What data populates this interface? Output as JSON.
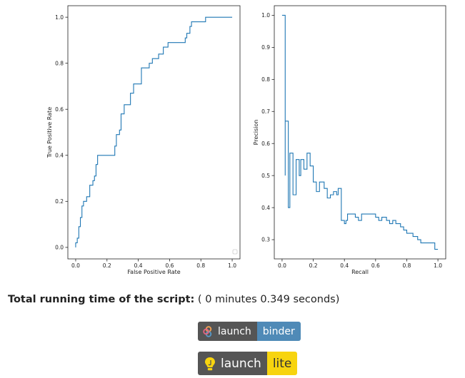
{
  "chart_data": [
    {
      "type": "line",
      "title": "",
      "xlabel": "False Positive Rate",
      "ylabel": "True Positive Rate",
      "xlim": [
        -0.05,
        1.05
      ],
      "ylim": [
        -0.05,
        1.05
      ],
      "xticks": [
        "0.0",
        "0.2",
        "0.4",
        "0.6",
        "0.8",
        "1.0"
      ],
      "yticks": [
        "0.0",
        "0.2",
        "0.4",
        "0.6",
        "0.8",
        "1.0"
      ],
      "legend": "bottom-right (empty)",
      "color": "#1f77b4",
      "points": [
        [
          0.0,
          0.0
        ],
        [
          0.0,
          0.02
        ],
        [
          0.01,
          0.02
        ],
        [
          0.01,
          0.04
        ],
        [
          0.02,
          0.04
        ],
        [
          0.02,
          0.09
        ],
        [
          0.03,
          0.09
        ],
        [
          0.03,
          0.13
        ],
        [
          0.04,
          0.13
        ],
        [
          0.04,
          0.18
        ],
        [
          0.05,
          0.18
        ],
        [
          0.05,
          0.2
        ],
        [
          0.07,
          0.2
        ],
        [
          0.07,
          0.22
        ],
        [
          0.09,
          0.22
        ],
        [
          0.09,
          0.27
        ],
        [
          0.11,
          0.27
        ],
        [
          0.11,
          0.29
        ],
        [
          0.12,
          0.29
        ],
        [
          0.12,
          0.31
        ],
        [
          0.13,
          0.31
        ],
        [
          0.13,
          0.36
        ],
        [
          0.14,
          0.36
        ],
        [
          0.14,
          0.4
        ],
        [
          0.25,
          0.4
        ],
        [
          0.25,
          0.44
        ],
        [
          0.26,
          0.44
        ],
        [
          0.26,
          0.49
        ],
        [
          0.28,
          0.49
        ],
        [
          0.28,
          0.51
        ],
        [
          0.29,
          0.51
        ],
        [
          0.29,
          0.58
        ],
        [
          0.31,
          0.58
        ],
        [
          0.31,
          0.62
        ],
        [
          0.35,
          0.62
        ],
        [
          0.35,
          0.67
        ],
        [
          0.37,
          0.67
        ],
        [
          0.37,
          0.71
        ],
        [
          0.42,
          0.71
        ],
        [
          0.42,
          0.78
        ],
        [
          0.47,
          0.78
        ],
        [
          0.47,
          0.8
        ],
        [
          0.49,
          0.8
        ],
        [
          0.49,
          0.82
        ],
        [
          0.53,
          0.82
        ],
        [
          0.53,
          0.84
        ],
        [
          0.56,
          0.84
        ],
        [
          0.56,
          0.87
        ],
        [
          0.59,
          0.87
        ],
        [
          0.59,
          0.89
        ],
        [
          0.7,
          0.89
        ],
        [
          0.7,
          0.91
        ],
        [
          0.71,
          0.91
        ],
        [
          0.71,
          0.93
        ],
        [
          0.73,
          0.93
        ],
        [
          0.73,
          0.96
        ],
        [
          0.74,
          0.96
        ],
        [
          0.74,
          0.98
        ],
        [
          0.83,
          0.98
        ],
        [
          0.83,
          1.0
        ],
        [
          1.0,
          1.0
        ]
      ]
    },
    {
      "type": "line",
      "title": "",
      "xlabel": "Recall",
      "ylabel": "Precision",
      "xlim": [
        -0.05,
        1.05
      ],
      "ylim": [
        0.24,
        1.03
      ],
      "xticks": [
        "0.0",
        "0.2",
        "0.4",
        "0.6",
        "0.8",
        "1.0"
      ],
      "yticks": [
        "0.3",
        "0.4",
        "0.5",
        "0.6",
        "0.7",
        "0.8",
        "0.9",
        "1.0"
      ],
      "color": "#1f77b4",
      "points": [
        [
          1.0,
          0.27
        ],
        [
          0.98,
          0.27
        ],
        [
          0.98,
          0.29
        ],
        [
          0.89,
          0.29
        ],
        [
          0.89,
          0.3
        ],
        [
          0.87,
          0.3
        ],
        [
          0.87,
          0.31
        ],
        [
          0.84,
          0.31
        ],
        [
          0.84,
          0.32
        ],
        [
          0.8,
          0.32
        ],
        [
          0.8,
          0.33
        ],
        [
          0.78,
          0.33
        ],
        [
          0.78,
          0.34
        ],
        [
          0.76,
          0.34
        ],
        [
          0.76,
          0.35
        ],
        [
          0.73,
          0.35
        ],
        [
          0.73,
          0.36
        ],
        [
          0.71,
          0.36
        ],
        [
          0.71,
          0.35
        ],
        [
          0.69,
          0.35
        ],
        [
          0.69,
          0.36
        ],
        [
          0.67,
          0.36
        ],
        [
          0.67,
          0.37
        ],
        [
          0.64,
          0.37
        ],
        [
          0.64,
          0.36
        ],
        [
          0.62,
          0.36
        ],
        [
          0.62,
          0.37
        ],
        [
          0.6,
          0.37
        ],
        [
          0.6,
          0.38
        ],
        [
          0.51,
          0.38
        ],
        [
          0.51,
          0.36
        ],
        [
          0.49,
          0.36
        ],
        [
          0.49,
          0.37
        ],
        [
          0.47,
          0.37
        ],
        [
          0.47,
          0.38
        ],
        [
          0.42,
          0.38
        ],
        [
          0.42,
          0.36
        ],
        [
          0.41,
          0.36
        ],
        [
          0.41,
          0.35
        ],
        [
          0.4,
          0.35
        ],
        [
          0.4,
          0.36
        ],
        [
          0.38,
          0.36
        ],
        [
          0.38,
          0.46
        ],
        [
          0.36,
          0.46
        ],
        [
          0.36,
          0.44
        ],
        [
          0.35,
          0.44
        ],
        [
          0.35,
          0.45
        ],
        [
          0.33,
          0.45
        ],
        [
          0.33,
          0.44
        ],
        [
          0.31,
          0.44
        ],
        [
          0.31,
          0.43
        ],
        [
          0.29,
          0.43
        ],
        [
          0.29,
          0.46
        ],
        [
          0.27,
          0.46
        ],
        [
          0.27,
          0.48
        ],
        [
          0.24,
          0.48
        ],
        [
          0.24,
          0.45
        ],
        [
          0.22,
          0.45
        ],
        [
          0.22,
          0.48
        ],
        [
          0.2,
          0.48
        ],
        [
          0.2,
          0.53
        ],
        [
          0.18,
          0.53
        ],
        [
          0.18,
          0.57
        ],
        [
          0.16,
          0.57
        ],
        [
          0.16,
          0.52
        ],
        [
          0.14,
          0.52
        ],
        [
          0.14,
          0.55
        ],
        [
          0.12,
          0.55
        ],
        [
          0.12,
          0.5
        ],
        [
          0.11,
          0.5
        ],
        [
          0.11,
          0.55
        ],
        [
          0.09,
          0.55
        ],
        [
          0.09,
          0.44
        ],
        [
          0.07,
          0.44
        ],
        [
          0.07,
          0.57
        ],
        [
          0.05,
          0.57
        ],
        [
          0.05,
          0.4
        ],
        [
          0.04,
          0.4
        ],
        [
          0.04,
          0.67
        ],
        [
          0.02,
          0.67
        ],
        [
          0.02,
          0.5
        ],
        [
          0.02,
          1.0
        ],
        [
          0.0,
          1.0
        ]
      ]
    }
  ],
  "runtime": {
    "label": "Total running time of the script:",
    "value": "( 0 minutes 0.349 seconds)"
  },
  "badges": {
    "binder": {
      "left": "launch",
      "right": "binder"
    },
    "lite": {
      "left": "launch",
      "right": "lite"
    }
  }
}
